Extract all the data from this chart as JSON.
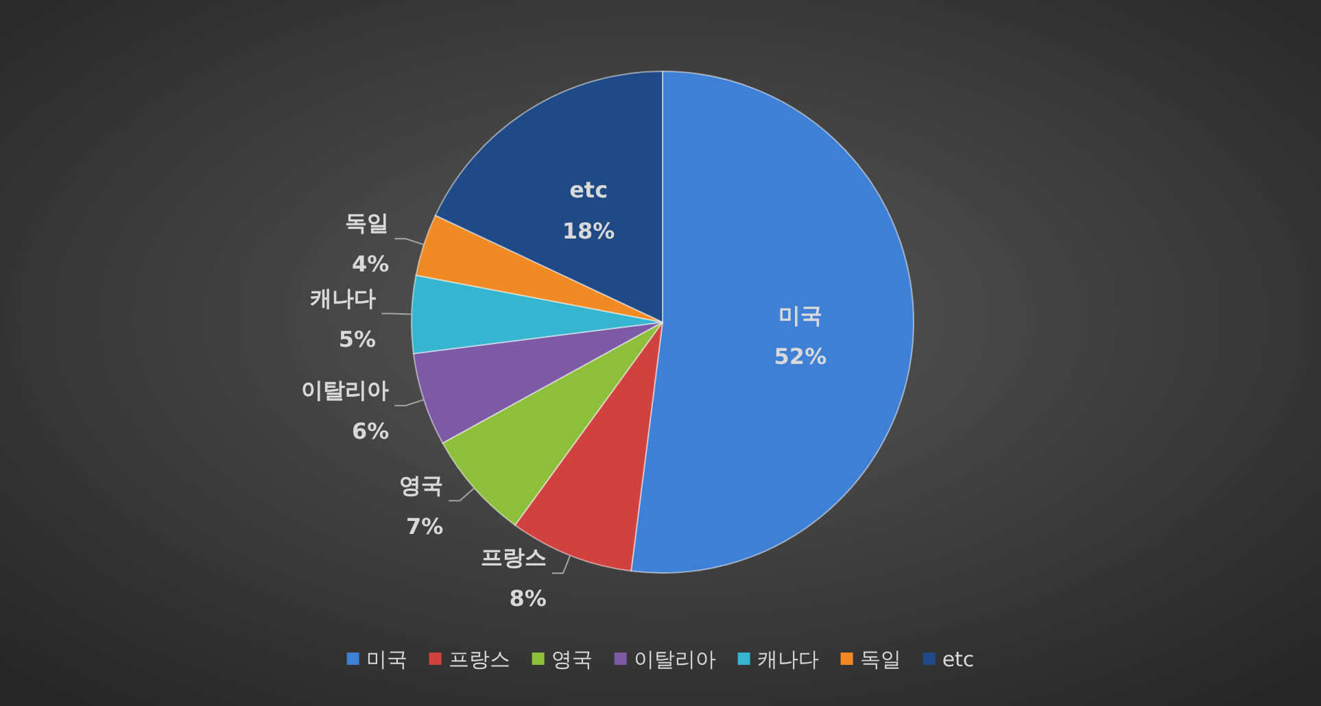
{
  "chart_data": {
    "type": "pie",
    "categories": [
      "미국",
      "프랑스",
      "영국",
      "이탈리아",
      "캐나다",
      "독일",
      "etc"
    ],
    "values": [
      52,
      8,
      7,
      6,
      5,
      4,
      18
    ],
    "value_labels": [
      "52%",
      "8%",
      "7%",
      "6%",
      "5%",
      "4%",
      "18%"
    ],
    "colors": [
      "#3d80d6",
      "#d0423f",
      "#8dbf3c",
      "#7d5aa6",
      "#35b5cf",
      "#ef8a25",
      "#1f4a86"
    ],
    "legend": "bottom"
  }
}
